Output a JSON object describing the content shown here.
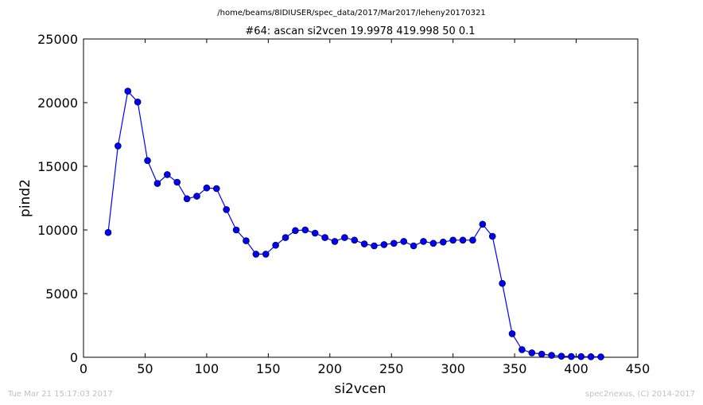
{
  "figure": {
    "supertitle": "/home/beams/8IDIUSER/spec_data/2017/Mar2017/leheny20170321",
    "footer_left": "Tue Mar 21 15:17:03 2017",
    "footer_right": "spec2nexus, (C) 2014-2017"
  },
  "chart_data": {
    "type": "line",
    "title": "#64: ascan  si2vcen 19.9978 419.998  50 0.1",
    "xlabel": "si2vcen",
    "ylabel": "pind2",
    "xlim": [
      0,
      450
    ],
    "ylim": [
      0,
      25000
    ],
    "xticks": [
      0,
      50,
      100,
      150,
      200,
      250,
      300,
      350,
      400,
      450
    ],
    "yticks": [
      0,
      5000,
      10000,
      15000,
      20000,
      25000
    ],
    "grid": false,
    "marker": "circle",
    "color": "#0000ff",
    "series": [
      {
        "x": [
          20,
          28,
          36,
          44,
          52,
          60,
          68,
          76,
          84,
          92,
          100,
          108,
          116,
          124,
          132,
          140,
          148,
          156,
          164,
          172,
          180,
          188,
          196,
          204,
          212,
          220,
          228,
          236,
          244,
          252,
          260,
          268,
          276,
          284,
          292,
          300,
          308,
          316,
          324,
          332,
          340,
          348,
          356,
          364,
          372,
          380,
          388,
          396,
          404,
          412,
          420
        ],
        "y": [
          9800,
          16600,
          20900,
          20050,
          15450,
          13650,
          14350,
          13750,
          12450,
          12650,
          13300,
          13250,
          11600,
          10000,
          9150,
          8100,
          8100,
          8800,
          9400,
          9950,
          10000,
          9750,
          9400,
          9100,
          9400,
          9200,
          8900,
          8750,
          8850,
          8950,
          9100,
          8750,
          9100,
          8950,
          9050,
          9200,
          9200,
          9200,
          10450,
          9500,
          5800,
          1850,
          600,
          350,
          250,
          150,
          80,
          60,
          50,
          40,
          30
        ]
      }
    ]
  }
}
